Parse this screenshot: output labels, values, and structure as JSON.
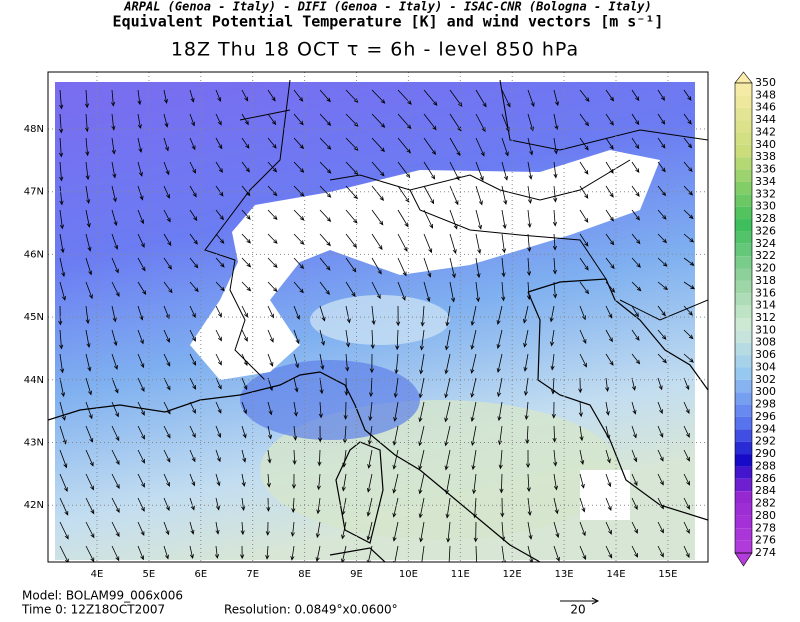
{
  "header": {
    "line1": "ARPAL (Genoa - Italy)  -  DIFI (Genoa - Italy)  -  ISAC-CNR (Bologna - Italy)",
    "line2": "Equivalent Potential Temperature [K] and wind vectors [m s⁻¹]",
    "line3": "18Z Thu 18 OCT  τ = 6h  -  level 850 hPa"
  },
  "map": {
    "lat_labels": [
      "48N",
      "47N",
      "46N",
      "45N",
      "44N",
      "43N",
      "42N"
    ],
    "lon_labels": [
      "4E",
      "5E",
      "6E",
      "7E",
      "8E",
      "9E",
      "10E",
      "11E",
      "12E",
      "13E",
      "14E",
      "15E"
    ]
  },
  "colorbar": {
    "levels": [
      350,
      348,
      346,
      344,
      342,
      340,
      338,
      336,
      334,
      332,
      330,
      328,
      326,
      324,
      322,
      320,
      318,
      316,
      314,
      312,
      310,
      308,
      306,
      304,
      302,
      300,
      298,
      296,
      294,
      292,
      290,
      288,
      286,
      284,
      282,
      280,
      278,
      276,
      274
    ]
  },
  "footer": {
    "model": "Model: BOLAM99_006x006",
    "time": "Time 0: 12Z18OCT2007",
    "resolution": "Resolution: 0.0849°x0.0600°",
    "vector_scale": "20"
  }
}
